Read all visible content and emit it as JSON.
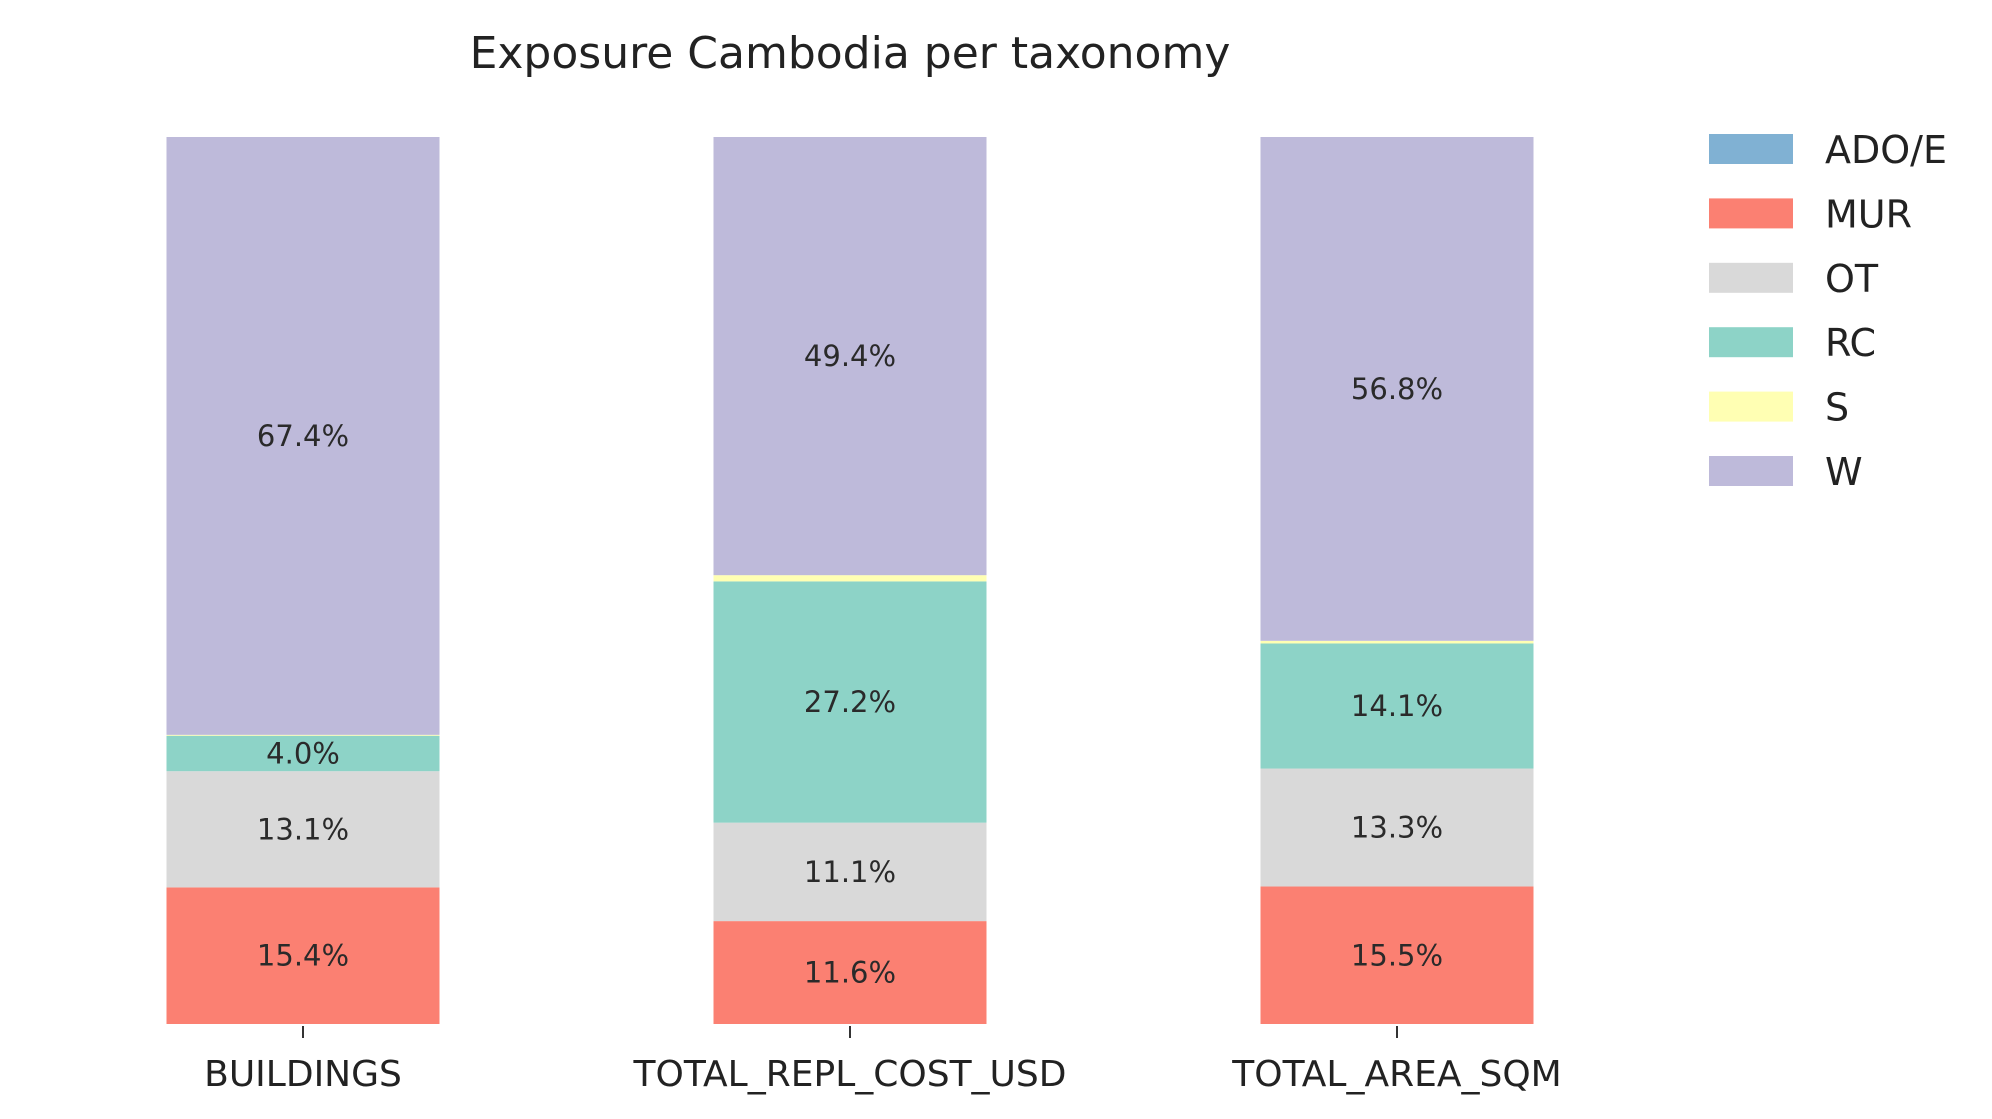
{
  "chart_data": {
    "type": "bar",
    "stacked": true,
    "percent": true,
    "title": "Exposure Cambodia per taxonomy",
    "xlabel": "",
    "ylabel": "",
    "ylim": [
      0,
      100
    ],
    "grid": false,
    "legend_position": "top-right",
    "categories": [
      "BUILDINGS",
      "TOTAL_REPL_COST_USD",
      "TOTAL_AREA_SQM"
    ],
    "series": [
      {
        "name": "ADO/E",
        "color": "#80b1d3",
        "values": [
          0.0,
          0.0,
          0.0
        ],
        "labels": [
          "",
          "",
          ""
        ]
      },
      {
        "name": "MUR",
        "color": "#fb8072",
        "values": [
          15.4,
          11.6,
          15.5
        ],
        "labels": [
          "15.4%",
          "11.6%",
          "15.5%"
        ]
      },
      {
        "name": "OT",
        "color": "#d9d9d9",
        "values": [
          13.1,
          11.1,
          13.3
        ],
        "labels": [
          "13.1%",
          "11.1%",
          "13.3%"
        ]
      },
      {
        "name": "RC",
        "color": "#8dd3c7",
        "values": [
          4.0,
          27.2,
          14.1
        ],
        "labels": [
          "4.0%",
          "27.2%",
          "14.1%"
        ]
      },
      {
        "name": "S",
        "color": "#ffffb3",
        "values": [
          0.1,
          0.7,
          0.3
        ],
        "labels": [
          "",
          "",
          ""
        ]
      },
      {
        "name": "W",
        "color": "#bebada",
        "values": [
          67.4,
          49.4,
          56.8
        ],
        "labels": [
          "67.4%",
          "49.4%",
          "56.8%"
        ]
      }
    ]
  }
}
